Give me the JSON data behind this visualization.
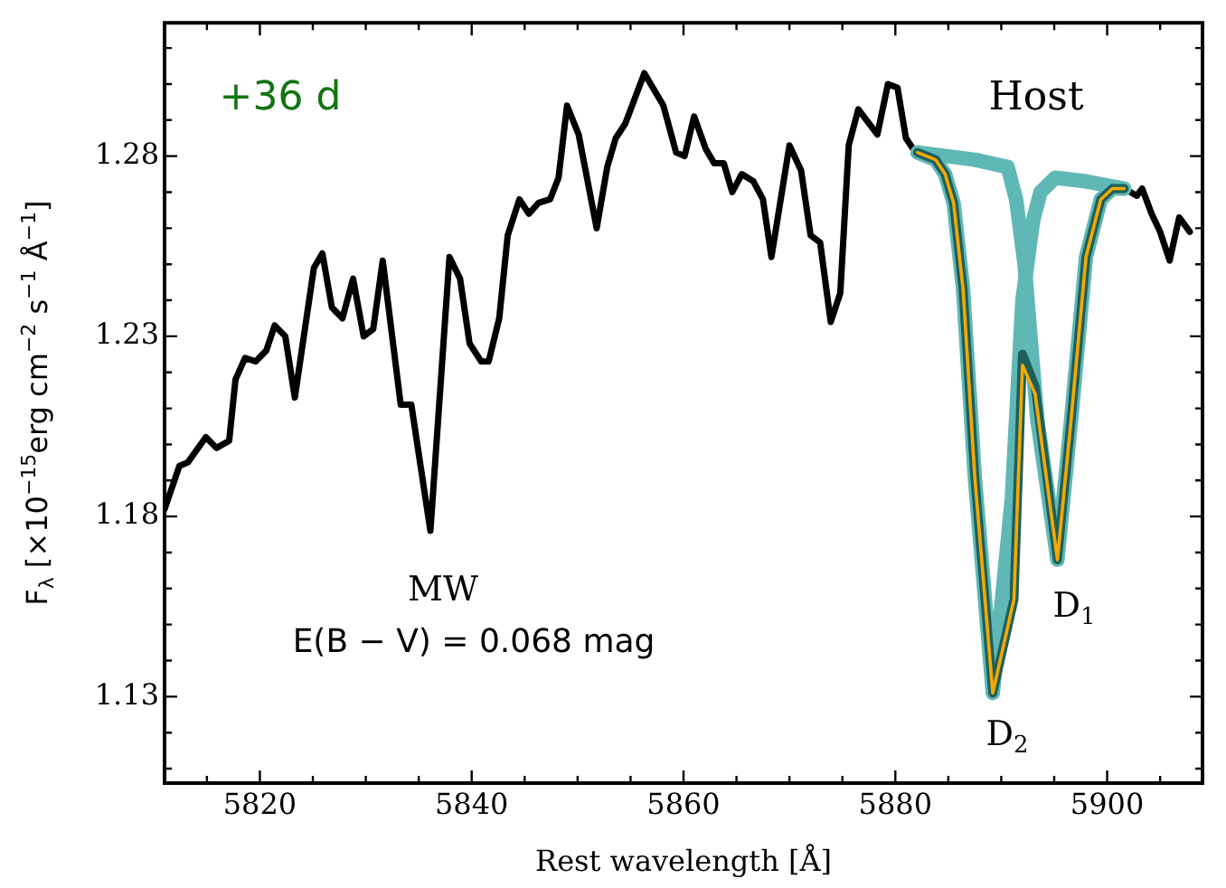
{
  "chart_data": {
    "type": "line",
    "xlabel": "Rest wavelength [Å]",
    "ylabel": "F$_{λ}$ [×10$^{−15}$erg cm$^{−2}$ s$^{−1}$ Å$^{−1}$]",
    "xlim": [
      5811,
      5909
    ],
    "ylim": [
      1.106,
      1.317
    ],
    "xticks": [
      {
        "value": 5815,
        "label": null
      },
      5820,
      {
        "value": 5825,
        "label": null
      },
      5840,
      {
        "value": 5835,
        "label": null
      },
      {
        "value": 5830,
        "label": null
      },
      {
        "value": 5845,
        "label": null
      },
      5860,
      {
        "value": 5850,
        "label": null
      },
      {
        "value": 5855,
        "label": null
      },
      {
        "value": 5865,
        "label": null
      },
      5880,
      {
        "value": 5870,
        "label": null
      },
      {
        "value": 5875,
        "label": null
      },
      {
        "value": 5885,
        "label": null
      },
      5900,
      {
        "value": 5890,
        "label": null
      },
      {
        "value": 5895,
        "label": null
      },
      {
        "value": 5905,
        "label": null
      }
    ],
    "yticks": [
      {
        "value": 1.11,
        "label": null
      },
      {
        "value": 1.12,
        "label": null
      },
      {
        "value": 1.13,
        "label": "1.13"
      },
      {
        "value": 1.14,
        "label": null
      },
      {
        "value": 1.15,
        "label": null
      },
      {
        "value": 1.16,
        "label": null
      },
      {
        "value": 1.17,
        "label": null
      },
      {
        "value": 1.18,
        "label": "1.18"
      },
      {
        "value": 1.19,
        "label": null
      },
      {
        "value": 1.2,
        "label": null
      },
      {
        "value": 1.21,
        "label": null
      },
      {
        "value": 1.22,
        "label": null
      },
      {
        "value": 1.23,
        "label": "1.23"
      },
      {
        "value": 1.24,
        "label": null
      },
      {
        "value": 1.25,
        "label": null
      },
      {
        "value": 1.26,
        "label": null
      },
      {
        "value": 1.27,
        "label": null
      },
      {
        "value": 1.28,
        "label": "1.28"
      },
      {
        "value": 1.29,
        "label": null
      },
      {
        "value": 1.3,
        "label": null
      },
      {
        "value": 1.31,
        "label": null
      }
    ],
    "grid": false,
    "legend": false,
    "annotations": [
      "+36 d",
      "Host",
      "MW",
      "E(B − V) = 0.068 mag",
      "D$_{2}$",
      "D$_{1}$"
    ],
    "series": [
      {
        "color": "#000000",
        "x": [
          5811,
          5812.4,
          5813.2,
          5814.9,
          5815.9,
          5817.1,
          5817.7,
          5818.6,
          5819.6,
          5820.6,
          5821.4,
          5822.4,
          5823.3,
          5825.1,
          5825.9,
          5826.8,
          5827.8,
          5828.8,
          5829.8,
          5830.7,
          5831.6,
          5833.3,
          5834.3,
          5836.1,
          5837.9,
          5838.9,
          5839.8,
          5840.9,
          5841.6,
          5842.6,
          5843.4,
          5844.5,
          5845.4,
          5846.3,
          5847.4,
          5848.2,
          5849,
          5850.1,
          5851.8,
          5852.8,
          5853.6,
          5854.5,
          5856.3,
          5858.1,
          5859.3,
          5860.1,
          5861,
          5862.1,
          5862.9,
          5863.8,
          5864.6,
          5865.5,
          5866.6,
          5867.5,
          5868.3,
          5870,
          5871.1,
          5872,
          5872.9,
          5873.9,
          5874.8,
          5875.6,
          5876.5,
          5878.3,
          5879.3,
          5880.2,
          5881,
          5881.9,
          5883,
          5883.8,
          5884.7,
          5885.5,
          5886.4,
          5887.5,
          5889.2,
          5891.2,
          5892,
          5893.2,
          5895.3,
          5896.6,
          5898,
          5899.4,
          5900.5,
          5901.6,
          5902.8,
          5903.3,
          5904.2,
          5905,
          5905.9,
          5906.8,
          5907.8
        ],
        "values": [
          1.182,
          1.194,
          1.195,
          1.202,
          1.199,
          1.201,
          1.218,
          1.224,
          1.223,
          1.226,
          1.233,
          1.23,
          1.213,
          1.249,
          1.253,
          1.238,
          1.235,
          1.246,
          1.23,
          1.232,
          1.251,
          1.211,
          1.211,
          1.176,
          1.252,
          1.246,
          1.228,
          1.223,
          1.223,
          1.235,
          1.258,
          1.268,
          1.264,
          1.267,
          1.268,
          1.274,
          1.294,
          1.286,
          1.26,
          1.277,
          1.285,
          1.289,
          1.303,
          1.294,
          1.281,
          1.28,
          1.291,
          1.282,
          1.278,
          1.278,
          1.27,
          1.275,
          1.273,
          1.268,
          1.252,
          1.283,
          1.276,
          1.258,
          1.256,
          1.234,
          1.242,
          1.283,
          1.293,
          1.286,
          1.3,
          1.299,
          1.285,
          1.281,
          1.279,
          1.28,
          1.276,
          1.267,
          1.243,
          1.191,
          1.131,
          1.157,
          1.225,
          1.216,
          1.168,
          1.207,
          1.252,
          1.268,
          1.271,
          1.271,
          1.269,
          1.271,
          1.264,
          1.259,
          1.251,
          1.263,
          1.259
        ]
      },
      {
        "color": "#5fb8b5",
        "x": [
          5882.1,
          5883.8,
          5884.7,
          5885.5,
          5886.4,
          5887.5,
          5889.2,
          5891,
          5892,
          5893,
          5893.7,
          5895.1,
          5898,
          5901.6
        ],
        "values": [
          1.281,
          1.279,
          1.275,
          1.267,
          1.243,
          1.191,
          1.131,
          1.185,
          1.24,
          1.262,
          1.27,
          1.274,
          1.273,
          1.271
        ]
      },
      {
        "color": "#5fb8b5",
        "x": [
          5882.1,
          5887.5,
          5890.6,
          5891.4,
          5892.2,
          5893.4,
          5895.3,
          5896.6,
          5898,
          5899.4,
          5900.5,
          5901.6
        ],
        "values": [
          1.281,
          1.279,
          1.277,
          1.268,
          1.25,
          1.207,
          1.168,
          1.207,
          1.252,
          1.268,
          1.271,
          1.271
        ]
      },
      {
        "color": "#1c5f5b",
        "x": [
          5882.1,
          5883.8,
          5884.7,
          5885.5,
          5886.4,
          5887.5,
          5889.2,
          5891.2,
          5892,
          5893.2,
          5895.3,
          5896.6,
          5898,
          5899.4,
          5900.5,
          5901.6
        ],
        "values": [
          1.281,
          1.279,
          1.275,
          1.267,
          1.243,
          1.191,
          1.131,
          1.157,
          1.225,
          1.216,
          1.168,
          1.207,
          1.252,
          1.268,
          1.271,
          1.271
        ]
      },
      {
        "color": "#f5a800",
        "x": [
          5882.1,
          5883.8,
          5884.7,
          5885.5,
          5886.4,
          5887.5,
          5889.2,
          5891.2,
          5892,
          5893.2,
          5895.3,
          5896.6,
          5898,
          5899.4,
          5900.5,
          5901.6
        ],
        "values": [
          1.281,
          1.279,
          1.275,
          1.267,
          1.243,
          1.191,
          1.131,
          1.157,
          1.222,
          1.214,
          1.168,
          1.207,
          1.252,
          1.268,
          1.271,
          1.271
        ]
      }
    ]
  }
}
